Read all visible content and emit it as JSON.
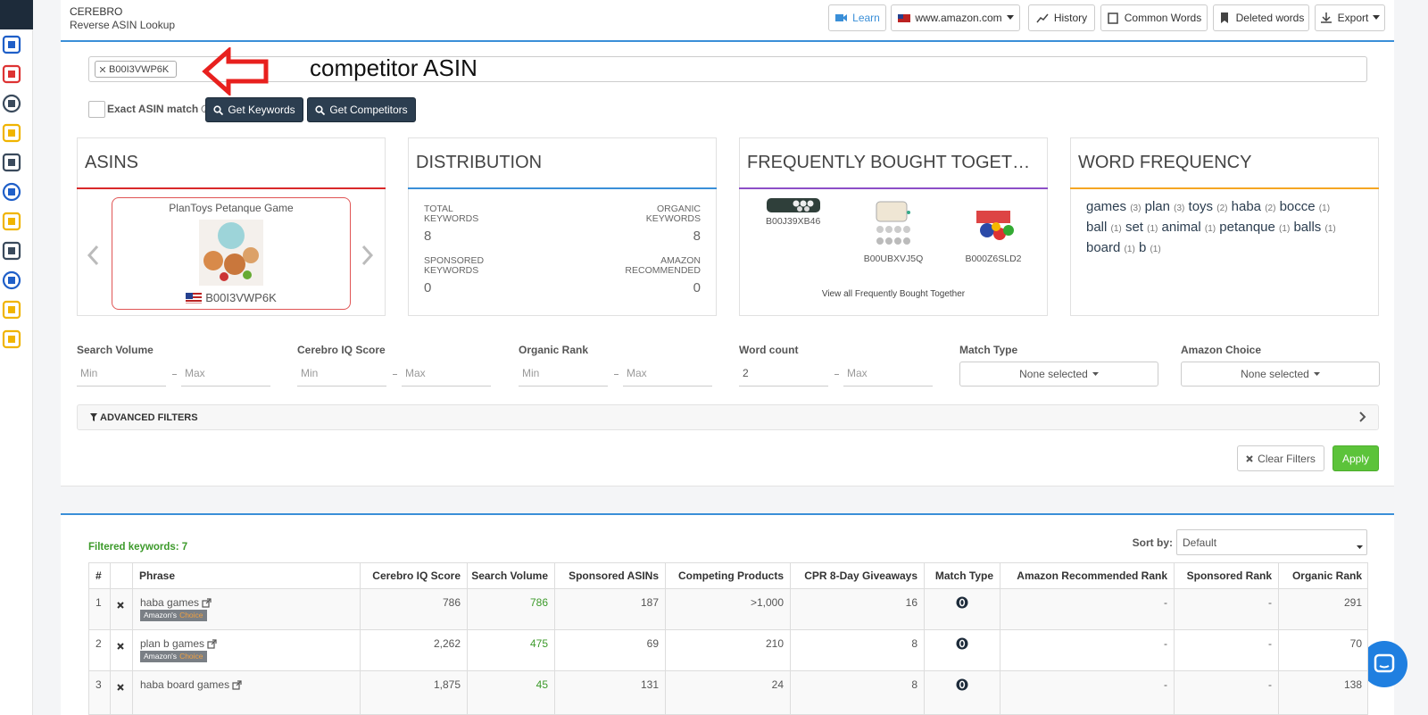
{
  "header": {
    "title": "CEREBRO",
    "subtitle": "Reverse ASIN Lookup",
    "buttons": [
      "Learn",
      "www.amazon.com",
      "History",
      "Common Words",
      "Deleted words",
      "Export"
    ]
  },
  "search": {
    "asin_tag": "B00I3VWP6K",
    "annotation": "competitor ASIN",
    "exact_match_label": "Exact ASIN match",
    "get_keywords": "Get Keywords",
    "get_competitors": "Get Competitors"
  },
  "cards": {
    "asins": {
      "title": "ASINS",
      "product_name": "PlanToys Petanque Game",
      "asin": "B00I3VWP6K"
    },
    "distribution": {
      "title": "DISTRIBUTION",
      "stats": [
        {
          "label": "TOTAL KEYWORDS",
          "value": 8
        },
        {
          "label": "ORGANIC KEYWORDS",
          "value": 8
        },
        {
          "label": "SPONSORED KEYWORDS",
          "value": 0
        },
        {
          "label": "AMAZON RECOMMENDED",
          "value": 0
        }
      ]
    },
    "frequently_bought": {
      "title": "FREQUENTLY BOUGHT TOGET…",
      "items": [
        "B00J39XB46",
        "B00UBXVJ5Q",
        "B000Z6SLD2"
      ],
      "link": "View all Frequently Bought Together"
    },
    "word_frequency": {
      "title": "WORD FREQUENCY",
      "words": [
        {
          "word": "games",
          "count": "(3)"
        },
        {
          "word": "plan",
          "count": "(3)"
        },
        {
          "word": "toys",
          "count": "(2)"
        },
        {
          "word": "haba",
          "count": "(2)"
        },
        {
          "word": "bocce",
          "count": "(1)"
        },
        {
          "word": "ball",
          "count": "(1)"
        },
        {
          "word": "set",
          "count": "(1)"
        },
        {
          "word": "animal",
          "count": "(1)"
        },
        {
          "word": "petanque",
          "count": "(1)"
        },
        {
          "word": "balls",
          "count": "(1)"
        },
        {
          "word": "board",
          "count": "(1)"
        },
        {
          "word": "b",
          "count": "(1)"
        }
      ]
    }
  },
  "filters": {
    "ranges": [
      {
        "label": "Search Volume",
        "min": "Min",
        "max": "Max"
      },
      {
        "label": "Cerebro IQ Score",
        "min": "Min",
        "max": "Max"
      },
      {
        "label": "Organic Rank",
        "min": "Min",
        "max": "Max"
      },
      {
        "label": "Word count",
        "min": "2",
        "max": "Max"
      }
    ],
    "selects": [
      {
        "label": "Match Type",
        "value": "None selected"
      },
      {
        "label": "Amazon Choice",
        "value": "None selected"
      }
    ],
    "advanced": "ADVANCED FILTERS",
    "clear": "Clear Filters",
    "apply": "Apply"
  },
  "table": {
    "filtered": "Filtered keywords: 7",
    "sort_label": "Sort by:",
    "sort_value": "Default",
    "columns": [
      "#",
      "Phrase",
      "Cerebro IQ Score",
      "Search Volume",
      "Sponsored ASINs",
      "Competing Products",
      "CPR 8-Day Giveaways",
      "Match Type",
      "Amazon Recommended Rank",
      "Sponsored Rank",
      "Organic Rank"
    ],
    "rows": [
      {
        "num": "1",
        "phrase": "haba games",
        "badge": [
          "Amazon's",
          "Choice"
        ],
        "iq": "786",
        "volume": "786",
        "sponsored": "187",
        "competing": ">1,000",
        "cpr": "16",
        "amazon_rank": "-",
        "sponsored_rank": "-",
        "organic_rank": "291"
      },
      {
        "num": "2",
        "phrase": "plan b games",
        "badge": [
          "Amazon's",
          "Choice"
        ],
        "iq": "2,262",
        "volume": "475",
        "sponsored": "69",
        "competing": "210",
        "cpr": "8",
        "amazon_rank": "-",
        "sponsored_rank": "-",
        "organic_rank": "70"
      },
      {
        "num": "3",
        "phrase": "haba board games",
        "iq": "1,875",
        "volume": "45",
        "sponsored": "131",
        "competing": "24",
        "cpr": "8",
        "amazon_rank": "-",
        "sponsored_rank": "-",
        "organic_rank": "138"
      }
    ]
  }
}
